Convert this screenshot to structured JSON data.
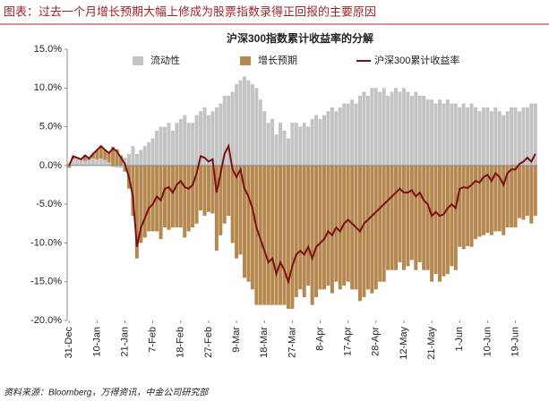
{
  "figure_title": "图表：过去一个月增长预期大幅上修成为股票指数录得正回报的主要原因",
  "source": "资料来源：Bloomberg，万得资讯，中金公司研究部",
  "chart_data": {
    "type": "bar",
    "title": "沪深300指数累计收益率的分解",
    "stacked": true,
    "categories": [
      "31-Dec",
      null,
      null,
      null,
      null,
      null,
      null,
      "10-Jan",
      null,
      null,
      null,
      null,
      null,
      null,
      "21-Jan",
      null,
      null,
      null,
      null,
      null,
      null,
      "7-Feb",
      null,
      null,
      null,
      null,
      null,
      null,
      "18-Feb",
      null,
      null,
      null,
      null,
      null,
      null,
      "27-Feb",
      null,
      null,
      null,
      null,
      null,
      null,
      "9-Mar",
      null,
      null,
      null,
      null,
      null,
      null,
      "18-Mar",
      null,
      null,
      null,
      null,
      null,
      null,
      "27-Mar",
      null,
      null,
      null,
      null,
      null,
      null,
      "8-Apr",
      null,
      null,
      null,
      null,
      null,
      null,
      "17-Apr",
      null,
      null,
      null,
      null,
      null,
      null,
      "28-Apr",
      null,
      null,
      null,
      null,
      null,
      null,
      "12-May",
      null,
      null,
      null,
      null,
      null,
      null,
      "21-May",
      null,
      null,
      null,
      null,
      null,
      null,
      "1-Jun",
      null,
      null,
      null,
      null,
      null,
      null,
      "10-Jun",
      null,
      null,
      null,
      null,
      null,
      null,
      "19-Jun",
      null,
      null,
      null,
      null,
      null
    ],
    "series": [
      {
        "name": "流动性",
        "type": "bar",
        "color": "#c3c3c3",
        "values": [
          0.3,
          0.8,
          0.9,
          0.7,
          0.6,
          0.7,
          0.9,
          0.8,
          0.9,
          0.7,
          0.4,
          -0.2,
          -0.3,
          -0.3,
          1.0,
          1.5,
          2.5,
          1.5,
          2.0,
          2.5,
          3.0,
          3.5,
          4.5,
          5.0,
          5.0,
          5.5,
          4.5,
          5.5,
          6.0,
          6.5,
          5.5,
          5.5,
          6.5,
          7.0,
          7.5,
          6.5,
          7.0,
          7.5,
          8.0,
          9.0,
          9.0,
          9.5,
          10.5,
          11.0,
          11.5,
          11.0,
          10.5,
          10.0,
          8.5,
          7.0,
          5.5,
          6.0,
          4.0,
          5.5,
          4.5,
          3.5,
          5.5,
          5.5,
          5.0,
          5.5,
          5.0,
          6.0,
          6.5,
          6.0,
          6.5,
          7.0,
          7.5,
          7.0,
          7.5,
          8.0,
          8.0,
          8.5,
          8.0,
          9.0,
          9.5,
          9.0,
          10.0,
          10.0,
          9.5,
          10.0,
          9.0,
          9.5,
          10.0,
          9.5,
          10.0,
          9.5,
          9.0,
          9.5,
          9.0,
          9.0,
          8.5,
          8.5,
          8.0,
          8.5,
          8.0,
          8.5,
          8.0,
          8.0,
          7.5,
          8.0,
          7.5,
          8.0,
          7.5,
          7.0,
          7.5,
          7.5,
          7.0,
          7.5,
          7.0,
          6.5,
          7.0,
          7.5,
          7.5,
          7.0,
          7.5,
          7.5,
          8.0,
          8.0
        ]
      },
      {
        "name": "增长预期",
        "type": "bar",
        "color": "#b5884f",
        "values": [
          -0.3,
          0.4,
          0.1,
          0.1,
          0.7,
          0.2,
          0.6,
          1.2,
          1.6,
          1.3,
          1.2,
          2.4,
          2.1,
          1.3,
          -0.8,
          -3.0,
          -6.5,
          -12.0,
          -10.0,
          -9.3,
          -8.5,
          -8.5,
          -8.5,
          -9.5,
          -8.0,
          -8.3,
          -8.0,
          -8.0,
          -8.0,
          -9.3,
          -8.5,
          -8.0,
          -7.5,
          -5.8,
          -6.5,
          -6.0,
          -6.2,
          -11.0,
          -9.0,
          -7.5,
          -6.5,
          -10.0,
          -12.0,
          -11.5,
          -14.5,
          -15.0,
          -16.0,
          -18.0,
          -18.0,
          -18.0,
          -18.0,
          -18.0,
          -18.0,
          -18.0,
          -18.0,
          -18.5,
          -18.5,
          -17.0,
          -16.0,
          -17.0,
          -15.5,
          -18.0,
          -17.0,
          -16.0,
          -16.0,
          -15.5,
          -16.5,
          -15.0,
          -16.0,
          -15.5,
          -15.0,
          -16.0,
          -16.0,
          -17.5,
          -17.0,
          -16.0,
          -16.5,
          -16.0,
          -15.0,
          -15.0,
          -13.5,
          -13.5,
          -13.5,
          -12.5,
          -13.5,
          -13.0,
          -12.2,
          -13.5,
          -12.5,
          -13.5,
          -13.5,
          -15.0,
          -14.0,
          -15.0,
          -14.3,
          -14.0,
          -13.0,
          -13.5,
          -10.5,
          -10.8,
          -10.4,
          -10.5,
          -9.5,
          -9.2,
          -9.0,
          -8.7,
          -9.0,
          -8.5,
          -8.5,
          -9.0,
          -8.0,
          -8.0,
          -8.0,
          -6.8,
          -7.0,
          -6.5,
          -7.5,
          -6.5
        ]
      },
      {
        "name": "沪深300累计收益率",
        "type": "line",
        "color": "#7a0f14",
        "values": [
          0,
          1.2,
          1.0,
          0.8,
          1.3,
          0.9,
          1.5,
          2.0,
          2.5,
          2.0,
          1.6,
          2.2,
          1.8,
          1.0,
          0.2,
          -1.5,
          -4.0,
          -10.5,
          -8.0,
          -6.8,
          -5.5,
          -5.0,
          -4.0,
          -4.5,
          -3.0,
          -2.8,
          -3.5,
          -2.5,
          -2.0,
          -2.8,
          -3.0,
          -2.5,
          -1.0,
          1.2,
          1.0,
          0.5,
          0.8,
          -3.5,
          -1.0,
          1.5,
          2.5,
          -0.5,
          -1.5,
          -0.5,
          -3.0,
          -4.0,
          -5.5,
          -8.0,
          -9.5,
          -11.0,
          -12.5,
          -12.0,
          -14.0,
          -12.5,
          -13.5,
          -15.0,
          -13.0,
          -11.5,
          -11.0,
          -11.5,
          -10.5,
          -12.0,
          -10.5,
          -10.0,
          -9.5,
          -8.5,
          -9.0,
          -8.0,
          -8.5,
          -7.5,
          -7.0,
          -7.5,
          -8.0,
          -8.5,
          -7.5,
          -7.0,
          -6.5,
          -6.0,
          -5.5,
          -5.0,
          -4.5,
          -4.0,
          -3.5,
          -3.0,
          -3.5,
          -3.5,
          -3.2,
          -4.0,
          -3.5,
          -4.5,
          -5.0,
          -6.5,
          -6.0,
          -6.5,
          -6.3,
          -5.5,
          -5.0,
          -5.5,
          -3.0,
          -2.8,
          -2.9,
          -2.5,
          -2.0,
          -2.2,
          -1.5,
          -1.2,
          -2.0,
          -1.0,
          -1.5,
          -2.5,
          -1.0,
          -0.5,
          -0.5,
          0.2,
          0.5,
          1.0,
          0.5,
          1.5
        ]
      }
    ],
    "ylim": [
      -20,
      15
    ],
    "yticks": [
      {
        "value": -20,
        "label": "-20.0%"
      },
      {
        "value": -15,
        "label": "-15.0%"
      },
      {
        "value": -10,
        "label": "-10.0%"
      },
      {
        "value": -5,
        "label": "-5.0%"
      },
      {
        "value": 0,
        "label": "0.0%"
      },
      {
        "value": 5,
        "label": "5.0%"
      },
      {
        "value": 10,
        "label": "10.0%"
      },
      {
        "value": 15,
        "label": "15.0%"
      }
    ],
    "grid": false,
    "legend": "top"
  }
}
